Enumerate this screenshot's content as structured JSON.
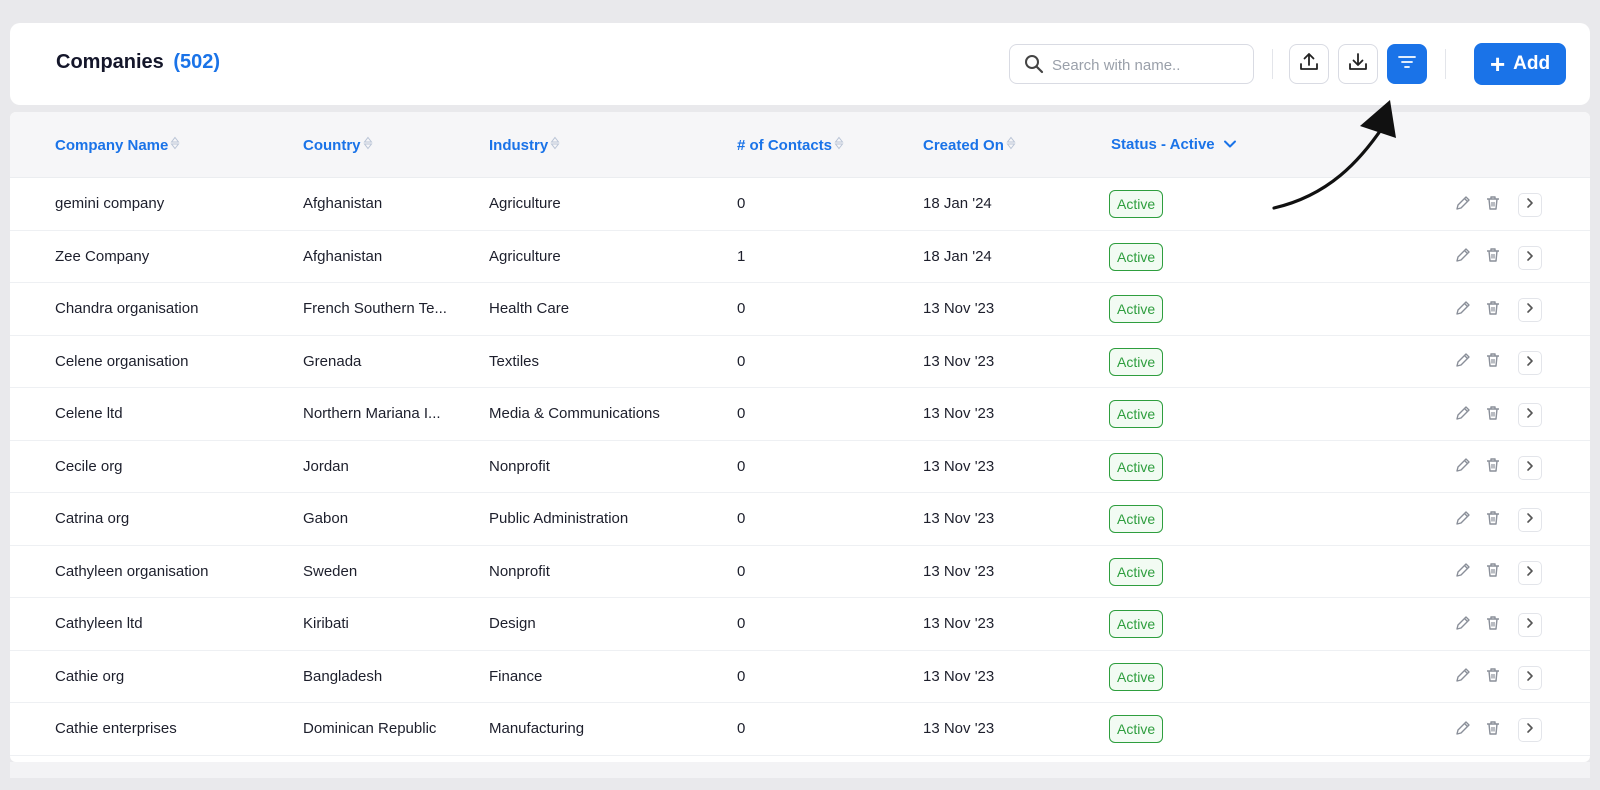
{
  "header": {
    "title": "Companies",
    "count": "(502)",
    "search_placeholder": "Search with name..",
    "add_label": "Add"
  },
  "columns": {
    "company_name": "Company Name",
    "country": "Country",
    "industry": "Industry",
    "contacts": "# of Contacts",
    "created_on": "Created On",
    "status": "Status - Active"
  },
  "rows": [
    {
      "name": "gemini company",
      "country": "Afghanistan",
      "industry": "Agriculture",
      "contacts": "0",
      "created": "18 Jan '24",
      "status": "Active"
    },
    {
      "name": "Zee Company",
      "country": "Afghanistan",
      "industry": "Agriculture",
      "contacts": "1",
      "created": "18 Jan '24",
      "status": "Active"
    },
    {
      "name": "Chandra organisation",
      "country": "French Southern Te...",
      "industry": "Health Care",
      "contacts": "0",
      "created": "13 Nov '23",
      "status": "Active"
    },
    {
      "name": "Celene organisation",
      "country": "Grenada",
      "industry": "Textiles",
      "contacts": "0",
      "created": "13 Nov '23",
      "status": "Active"
    },
    {
      "name": "Celene ltd",
      "country": "Northern Mariana I...",
      "industry": "Media & Communications",
      "contacts": "0",
      "created": "13 Nov '23",
      "status": "Active"
    },
    {
      "name": "Cecile org",
      "country": "Jordan",
      "industry": "Nonprofit",
      "contacts": "0",
      "created": "13 Nov '23",
      "status": "Active"
    },
    {
      "name": "Catrina org",
      "country": "Gabon",
      "industry": "Public Administration",
      "contacts": "0",
      "created": "13 Nov '23",
      "status": "Active"
    },
    {
      "name": "Cathyleen organisation",
      "country": "Sweden",
      "industry": "Nonprofit",
      "contacts": "0",
      "created": "13 Nov '23",
      "status": "Active"
    },
    {
      "name": "Cathyleen ltd",
      "country": "Kiribati",
      "industry": "Design",
      "contacts": "0",
      "created": "13 Nov '23",
      "status": "Active"
    },
    {
      "name": "Cathie org",
      "country": "Bangladesh",
      "industry": "Finance",
      "contacts": "0",
      "created": "13 Nov '23",
      "status": "Active"
    },
    {
      "name": "Cathie enterprises",
      "country": "Dominican Republic",
      "industry": "Manufacturing",
      "contacts": "0",
      "created": "13 Nov '23",
      "status": "Active"
    }
  ],
  "colors": {
    "accent": "#1a73e8",
    "active_badge": "#2e9e3e"
  },
  "icons": [
    "search-icon",
    "upload-icon",
    "download-icon",
    "filter-icon",
    "plus-icon",
    "sort-icon",
    "chevron-down-icon",
    "edit-icon",
    "trash-icon",
    "chevron-right-icon",
    "arrow-annotation"
  ]
}
